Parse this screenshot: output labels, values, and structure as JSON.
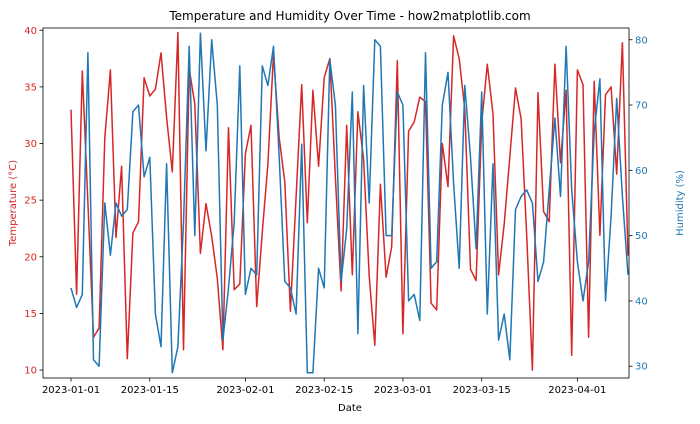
{
  "chart_data": {
    "type": "line",
    "title": "Temperature and Humidity Over Time - how2matplotlib.com",
    "xlabel": "Date",
    "x_ticks": [
      "2023-01-01",
      "2023-01-15",
      "2023-02-01",
      "2023-02-15",
      "2023-03-01",
      "2023-03-15",
      "2023-04-01"
    ],
    "x_start": "2023-01-01",
    "y_left": {
      "label": "Temperature (°C)",
      "ticks": [
        10,
        15,
        20,
        25,
        30,
        35,
        40
      ],
      "range": [
        9.3,
        40.2
      ]
    },
    "y_right": {
      "label": "Humidity (%)",
      "ticks": [
        30,
        40,
        50,
        60,
        70,
        80
      ],
      "range": [
        28.2,
        81.8
      ]
    },
    "colors": {
      "temperature": "#d62728",
      "humidity": "#1f77b4"
    },
    "series": [
      {
        "key": "temperature",
        "axis": "left",
        "values": [
          33.0,
          16.7,
          36.4,
          24.8,
          12.9,
          13.7,
          30.5,
          36.5,
          21.7,
          28.0,
          11.0,
          22.1,
          23.1,
          35.8,
          34.2,
          34.8,
          38.0,
          32.3,
          27.5,
          39.8,
          11.8,
          36.6,
          33.5,
          20.3,
          24.7,
          21.8,
          18.1,
          11.8,
          31.4,
          17.1,
          17.6,
          29.1,
          31.6,
          15.6,
          22.2,
          28.2,
          37.9,
          30.5,
          26.6,
          15.2,
          25.3,
          35.2,
          23.0,
          34.7,
          28.0,
          35.8,
          37.5,
          27.0,
          17.0,
          31.6,
          18.4,
          32.8,
          28.6,
          18.3,
          12.2,
          26.4,
          18.2,
          20.9,
          37.3,
          13.2,
          31.1,
          31.9,
          34.1,
          33.7,
          15.9,
          15.3,
          30.0,
          26.2,
          39.5,
          37.5,
          33.0,
          18.9,
          17.9,
          31.8,
          37.0,
          32.6,
          18.4,
          22.9,
          28.8,
          34.9,
          32.2,
          21.9,
          10.0,
          34.5,
          24.0,
          23.1,
          37.0,
          28.3,
          34.7,
          11.3,
          36.5,
          35.2,
          12.9,
          35.5,
          21.9,
          34.3,
          35.0,
          27.3,
          38.9,
          20.1
        ]
      },
      {
        "key": "humidity",
        "axis": "right",
        "values": [
          42.0,
          39.0,
          41.0,
          78.0,
          31.0,
          30.0,
          55.0,
          47.0,
          55.0,
          53.0,
          54.0,
          69.0,
          70.0,
          59.0,
          62.0,
          38.0,
          33.0,
          61.0,
          29.0,
          33.0,
          52.0,
          79.0,
          50.0,
          81.0,
          63.0,
          80.0,
          70.0,
          34.0,
          42.0,
          52.0,
          76.0,
          41.0,
          45.0,
          44.0,
          76.0,
          73.0,
          79.0,
          62.0,
          43.0,
          42.0,
          38.0,
          64.0,
          29.0,
          29.0,
          45.0,
          42.0,
          77.0,
          70.0,
          43.0,
          51.0,
          72.0,
          35.0,
          73.0,
          55.0,
          80.0,
          79.0,
          50.0,
          50.0,
          72.0,
          70.0,
          40.0,
          41.0,
          37.0,
          78.0,
          45.0,
          46.0,
          70.0,
          75.0,
          58.0,
          45.0,
          73.0,
          62.0,
          48.0,
          72.0,
          38.0,
          61.0,
          34.0,
          38.0,
          31.0,
          54.0,
          56.0,
          57.0,
          55.0,
          43.0,
          46.0,
          57.0,
          68.0,
          56.0,
          79.0,
          57.0,
          46.0,
          40.0,
          46.0,
          66.0,
          74.0,
          40.0,
          53.0,
          71.0,
          56.0,
          44.0
        ]
      }
    ],
    "grid": false,
    "legend": "none"
  }
}
